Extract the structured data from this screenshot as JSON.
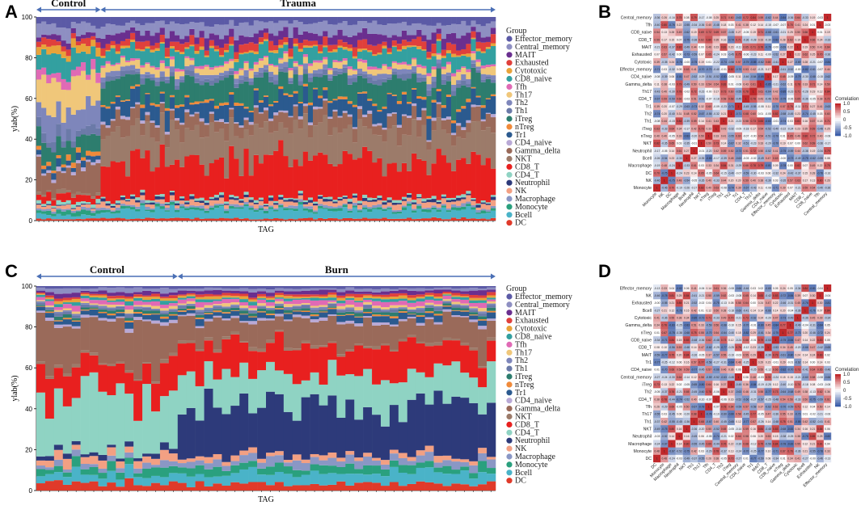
{
  "panels": {
    "A": {
      "letter": "A"
    },
    "B": {
      "letter": "B"
    },
    "C": {
      "letter": "C"
    },
    "D": {
      "letter": "D"
    }
  },
  "chart_data": [
    {
      "id": "A",
      "type": "bar",
      "stacked": true,
      "ylabel": "ylab(%)",
      "xlabel": "TAG",
      "ylim": [
        0,
        100
      ],
      "yticks": [
        "0",
        "20",
        "40",
        "60",
        "80",
        "100"
      ],
      "groups": [
        {
          "label": "Control",
          "n_samples": 13
        },
        {
          "label": "Trauma",
          "n_samples": 80
        }
      ],
      "legend_title": "Group",
      "cell_types": [
        "Effector_memory",
        "Central_memory",
        "MAIT",
        "Exhausted",
        "Cytotoxic",
        "CD8_naive",
        "Tfh",
        "Th17",
        "Th2",
        "Th1",
        "iTreg",
        "nTreg",
        "Tr1",
        "CD4_naive",
        "Gamma_delta",
        "NKT",
        "CD8_T",
        "CD4_T",
        "Neutrophil",
        "NK",
        "Macrophage",
        "Monocyte",
        "Bcell",
        "DC"
      ],
      "colors": [
        "#5b5aa6",
        "#8e8fc2",
        "#6a2f8f",
        "#e0403c",
        "#e8a33a",
        "#33a0a0",
        "#e06ab5",
        "#f0c77a",
        "#7e86bb",
        "#6b7aa8",
        "#2d7d6e",
        "#f08a3a",
        "#2b5a8f",
        "#b9a9d6",
        "#9a6a5a",
        "#9c7b6a",
        "#e8201f",
        "#8fd3c3",
        "#2d3a7a",
        "#f3a083",
        "#8a97c5",
        "#2aa07e",
        "#4ab3c8",
        "#e03a2a"
      ],
      "control_profile": [
        4,
        5,
        2,
        3,
        3,
        8,
        4,
        14,
        10,
        4,
        9,
        2,
        3,
        1.5,
        12,
        1.5,
        3,
        1.5,
        0.5,
        1.5,
        1,
        2,
        2,
        1
      ],
      "case_profile": [
        3,
        5,
        4,
        3,
        1,
        6,
        1,
        3,
        2,
        2,
        9,
        1,
        7,
        1,
        6,
        14,
        18,
        1,
        1,
        2,
        1,
        1,
        4,
        1
      ]
    },
    {
      "id": "C",
      "type": "bar",
      "stacked": true,
      "ylabel": "ylab(%)",
      "xlabel": "TAG",
      "ylim": [
        0,
        100
      ],
      "yticks": [
        "0",
        "20",
        "40",
        "60",
        "80",
        "100"
      ],
      "groups": [
        {
          "label": "Control",
          "n_samples": 16
        },
        {
          "label": "Burn",
          "n_samples": 36
        }
      ],
      "legend_title": "Group",
      "cell_types": [
        "Effector_memory",
        "Central_memory",
        "MAIT",
        "Exhausted",
        "Cytotoxic",
        "CD8_naive",
        "Tfh",
        "Th17",
        "Th2",
        "Th1",
        "iTreg",
        "nTreg",
        "Tr1",
        "CD4_naive",
        "Gamma_delta",
        "NKT",
        "CD8_T",
        "CD4_T",
        "Neutrophil",
        "NK",
        "Macrophage",
        "Monocyte",
        "Bcell",
        "DC"
      ],
      "colors": [
        "#5b5aa6",
        "#8e8fc2",
        "#6a2f8f",
        "#e0403c",
        "#e8a33a",
        "#33a0a0",
        "#e06ab5",
        "#f0c77a",
        "#7e86bb",
        "#6b7aa8",
        "#2d7d6e",
        "#f08a3a",
        "#2b5a8f",
        "#b9a9d6",
        "#9a6a5a",
        "#9c7b6a",
        "#e8201f",
        "#8fd3c3",
        "#2d3a7a",
        "#f3a083",
        "#8a97c5",
        "#2aa07e",
        "#4ab3c8",
        "#e03a2a"
      ],
      "control_profile": [
        1,
        1.5,
        1.5,
        1,
        1,
        1,
        1.5,
        1,
        0.5,
        1,
        1,
        0.5,
        2,
        1,
        20,
        1,
        13,
        28,
        2,
        3,
        2,
        3,
        4,
        3
      ],
      "case_profile": [
        1,
        1,
        1.5,
        1,
        1,
        1,
        1.5,
        1,
        0.5,
        1,
        1,
        0.5,
        2,
        1,
        10,
        1,
        13,
        14,
        22,
        2,
        3,
        3,
        5,
        3
      ]
    },
    {
      "id": "B",
      "type": "heatmap",
      "colorbar_title": "Correlation",
      "colorbar_ticks": [
        "1.0",
        "0.5",
        "0",
        "-0.5",
        "-1.0"
      ],
      "row_labels": [
        "Central_memory",
        "Tfh",
        "CD8_naive",
        "CD8_T",
        "MAIT",
        "Exhausted",
        "Cytotoxic",
        "Effector_memory",
        "CD4_naive",
        "Gamma_delta",
        "Th17",
        "CD4_T",
        "Tr1",
        "Th2",
        "Th1",
        "iTreg",
        "nTreg",
        "NKT",
        "Neutrophil",
        "Bcell",
        "Macrophage",
        "DC",
        "NK",
        "Monocyte"
      ],
      "col_labels": [
        "Monocyte",
        "NK",
        "DC",
        "Macrophage",
        "Bcell",
        "Neutrophil",
        "NKT",
        "nTreg",
        "iTreg",
        "Th1",
        "Th2",
        "Tr1",
        "CD4_T",
        "Th17",
        "Gamma_delta",
        "CD4_naive",
        "Effector_memory",
        "Cytotoxic",
        "Exhausted",
        "MAIT",
        "CD8_T",
        "CD8_naive",
        "Tfh",
        "Central_memory"
      ],
      "note": "correlation matrix, values -1..1; diagonal = 1"
    },
    {
      "id": "D",
      "type": "heatmap",
      "colorbar_title": "Correlation",
      "colorbar_ticks": [
        "1.0",
        "0.5",
        "0",
        "-0.5",
        "-1.0"
      ],
      "row_labels": [
        "Effector_memory",
        "NK",
        "Exhausted",
        "Bcell",
        "Cytotoxic",
        "Gamma_delta",
        "nTreg",
        "CD8_naive",
        "CD8_T",
        "MAIT",
        "Tr1",
        "CD4_naive",
        "Central_memory",
        "iTreg",
        "Th2",
        "CD4_T",
        "Tfh",
        "Th17",
        "Th1",
        "NKT",
        "Neutrophil",
        "Macrophage",
        "Monocyte",
        "DC"
      ],
      "col_labels": [
        "DC",
        "Monocyte",
        "Macrophage",
        "Neutrophil",
        "NKT",
        "Th1",
        "Th17",
        "Tfh",
        "CD4_T",
        "Th2",
        "iTreg",
        "Central_memory",
        "CD4_naive",
        "Tr1",
        "MAIT",
        "CD8_T",
        "CD8_naive",
        "nTreg",
        "Gamma_delta",
        "Cytotoxic",
        "Bcell",
        "Exhausted",
        "NK",
        "Effector_memory"
      ],
      "note": "correlation matrix, values -1..1; diagonal = 1"
    }
  ]
}
